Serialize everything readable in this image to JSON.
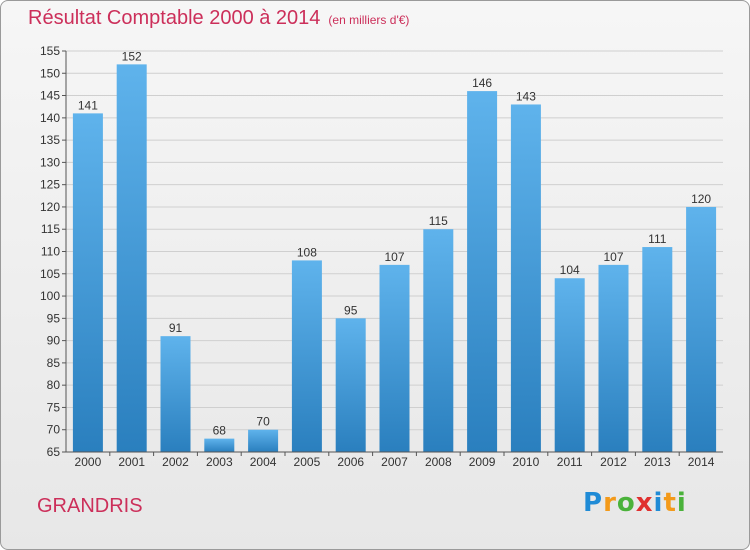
{
  "title": {
    "main": "Résultat Comptable 2000 à 2014",
    "unit": "(en milliers d'€)"
  },
  "town": "GRANDRIS",
  "logo": {
    "letters": [
      "P",
      "r",
      "o",
      "x",
      "i",
      "t",
      "i"
    ],
    "colors": [
      "#1f8bd6",
      "#f39a1a",
      "#4ab23a",
      "#e0302f",
      "#1f8bd6",
      "#f39a1a",
      "#4ab23a"
    ]
  },
  "colors": {
    "bar_light": "#5fb3ec",
    "bar_dark": "#2a7fbe",
    "title": "#cc2f5a",
    "grid": "#cfcfcf"
  },
  "chart_data": {
    "type": "bar",
    "title": "Résultat Comptable 2000 à 2014 (en milliers d'€)",
    "xlabel": "",
    "ylabel": "",
    "categories": [
      "2000",
      "2001",
      "2002",
      "2003",
      "2004",
      "2005",
      "2006",
      "2007",
      "2008",
      "2009",
      "2010",
      "2011",
      "2012",
      "2013",
      "2014"
    ],
    "values": [
      141,
      152,
      91,
      68,
      70,
      108,
      95,
      107,
      115,
      146,
      143,
      104,
      107,
      111,
      120
    ],
    "ylim": [
      65,
      155
    ],
    "yticks": [
      65,
      70,
      75,
      80,
      85,
      90,
      95,
      100,
      105,
      110,
      115,
      120,
      125,
      130,
      135,
      140,
      145,
      150,
      155
    ],
    "grid": true
  }
}
